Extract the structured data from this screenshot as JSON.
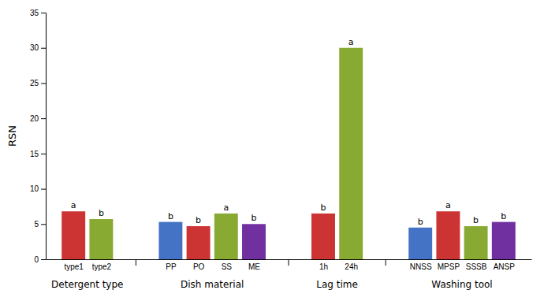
{
  "chart_data": {
    "type": "bar",
    "groups": [
      {
        "label": "Detergent type",
        "categories": [
          "type1",
          "type2"
        ],
        "values": [
          6.8,
          5.7
        ],
        "colors": [
          "#CC3333",
          "#88AA33"
        ],
        "annotations": [
          "a",
          "b"
        ]
      },
      {
        "label": "Dish material",
        "categories": [
          "PP",
          "PO",
          "SS",
          "ME"
        ],
        "values": [
          5.3,
          4.7,
          6.5,
          5.0
        ],
        "colors": [
          "#4472C4",
          "#CC3333",
          "#88AA33",
          "#7030A0"
        ],
        "annotations": [
          "b",
          "b",
          "a",
          "b"
        ]
      },
      {
        "label": "Lag time",
        "categories": [
          "1h",
          "24h"
        ],
        "values": [
          6.5,
          30.0
        ],
        "colors": [
          "#CC3333",
          "#88AA33"
        ],
        "annotations": [
          "b",
          "a"
        ]
      },
      {
        "label": "Washing tool",
        "categories": [
          "NNSS",
          "MPSP",
          "SSSB",
          "ANSP"
        ],
        "values": [
          4.5,
          6.8,
          4.7,
          5.3
        ],
        "colors": [
          "#4472C4",
          "#CC3333",
          "#88AA33",
          "#7030A0"
        ],
        "annotations": [
          "b",
          "a",
          "b",
          "b"
        ]
      }
    ],
    "ylabel": "RSN",
    "ylim": [
      0,
      35
    ],
    "yticks": [
      0,
      5,
      10,
      15,
      20,
      25,
      30,
      35
    ],
    "grid": false
  }
}
